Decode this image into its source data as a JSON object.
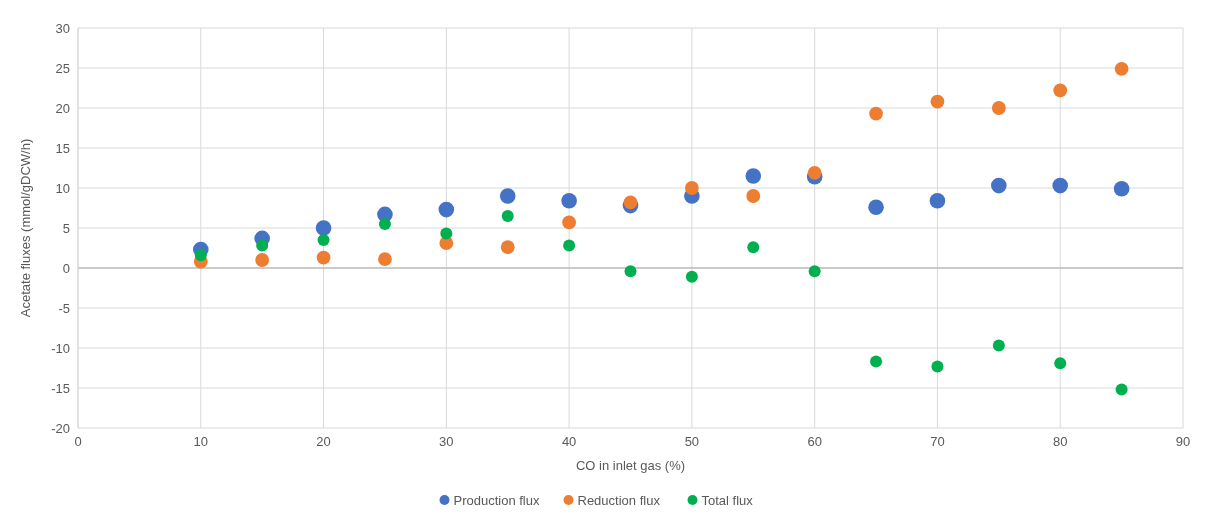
{
  "chart_data": {
    "type": "scatter",
    "xlabel": "CO in inlet gas (%)",
    "ylabel": "Acetate fluxes (mmol/gDCW/h)",
    "x": [
      10,
      15,
      20,
      25,
      30,
      35,
      40,
      45,
      50,
      55,
      60,
      65,
      70,
      75,
      80,
      85
    ],
    "series": [
      {
        "name": "Production flux",
        "color": "#4472c4",
        "values": [
          2.3,
          3.7,
          5.0,
          6.7,
          7.3,
          9.0,
          8.4,
          7.8,
          9.0,
          11.5,
          11.4,
          7.6,
          8.4,
          10.3,
          10.3,
          9.9
        ]
      },
      {
        "name": "Reduction flux",
        "color": "#ed7d31",
        "values": [
          0.8,
          1.0,
          1.3,
          1.1,
          3.1,
          2.6,
          5.7,
          8.2,
          10.0,
          9.0,
          11.9,
          19.3,
          20.8,
          20.0,
          22.2,
          24.9
        ]
      },
      {
        "name": "Total flux",
        "color": "#00b050",
        "values": [
          1.6,
          2.8,
          3.5,
          5.5,
          4.3,
          6.5,
          2.8,
          -0.4,
          -1.1,
          2.6,
          -0.4,
          -11.7,
          -12.3,
          -9.7,
          -11.9,
          -15.2
        ]
      }
    ],
    "xlim": [
      0,
      90
    ],
    "xticks": [
      0,
      10,
      20,
      30,
      40,
      50,
      60,
      70,
      80,
      90
    ],
    "ylim": [
      -20,
      30
    ],
    "yticks": [
      -20,
      -15,
      -10,
      -5,
      0,
      5,
      10,
      15,
      20,
      25,
      30
    ],
    "grid": true,
    "legend": "bottom",
    "marker": "circle"
  }
}
